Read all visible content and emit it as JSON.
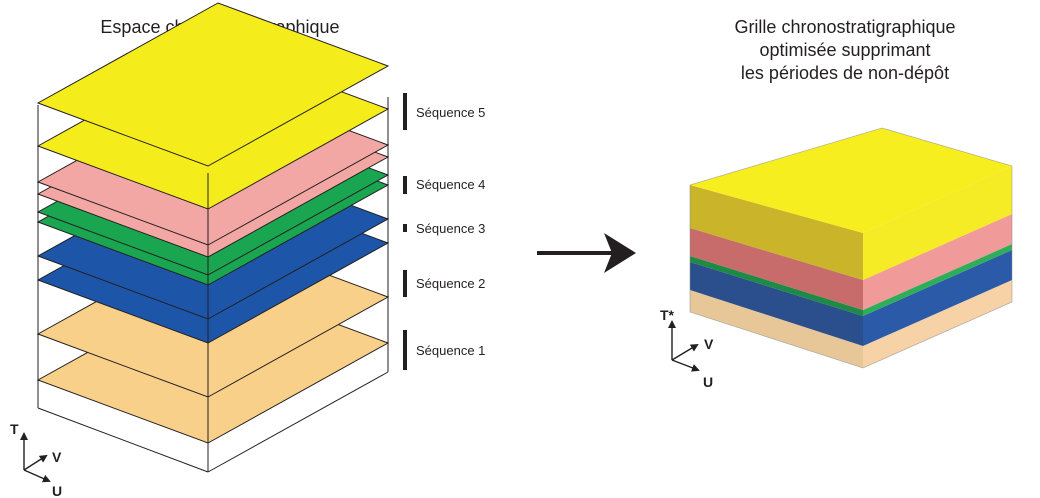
{
  "left_title": "Espace chronostratigraphique",
  "right_title": [
    "Grille chronostratigraphique",
    "optimisée supprimant",
    "les périodes de non-dépôt"
  ],
  "sequences": [
    "Séquence 5",
    "Séquence 4",
    "Séquence 3",
    "Séquence 2",
    "Séquence 1"
  ],
  "left_axes": {
    "t": "T",
    "v": "V",
    "u": "U"
  },
  "right_axes": {
    "t": "T*",
    "v": "V",
    "u": "U"
  },
  "colors": {
    "yellow": "#f5ec1c",
    "pink": "#f3a7a4",
    "green": "#1aa550",
    "blue": "#1d55a8",
    "orange": "#f8d08a",
    "outline": "#231f20"
  },
  "layer_order_bottom_to_top": [
    "orange",
    "orange",
    "blue",
    "blue",
    "green",
    "green",
    "pink",
    "pink",
    "yellow",
    "yellow"
  ]
}
